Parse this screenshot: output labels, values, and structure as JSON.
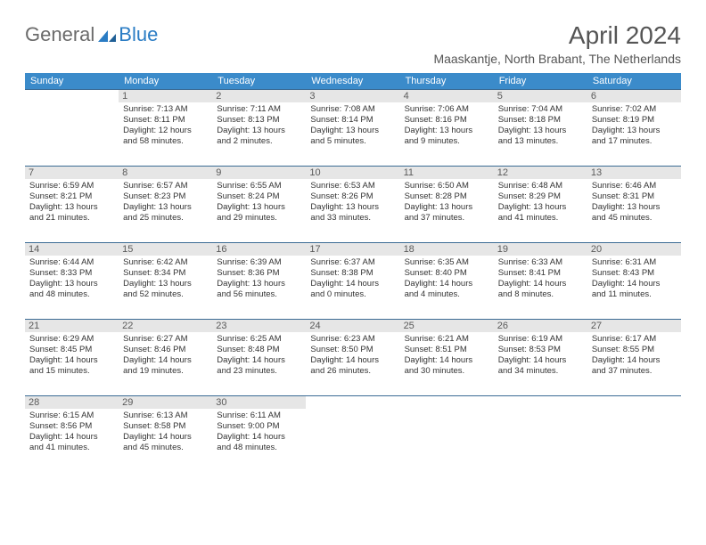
{
  "logo": {
    "general": "General",
    "blue": "Blue"
  },
  "title": "April 2024",
  "location": "Maaskantje, North Brabant, The Netherlands",
  "colors": {
    "header_bg": "#3b8bca",
    "header_text": "#ffffff",
    "row_border": "#3b6b94",
    "daynum_bg": "#e6e6e6",
    "logo_gray": "#6b6b6b",
    "logo_blue": "#2a7cc4"
  },
  "weekdays": [
    "Sunday",
    "Monday",
    "Tuesday",
    "Wednesday",
    "Thursday",
    "Friday",
    "Saturday"
  ],
  "weeks": [
    [
      null,
      {
        "n": "1",
        "sr": "Sunrise: 7:13 AM",
        "ss": "Sunset: 8:11 PM",
        "d1": "Daylight: 12 hours",
        "d2": "and 58 minutes."
      },
      {
        "n": "2",
        "sr": "Sunrise: 7:11 AM",
        "ss": "Sunset: 8:13 PM",
        "d1": "Daylight: 13 hours",
        "d2": "and 2 minutes."
      },
      {
        "n": "3",
        "sr": "Sunrise: 7:08 AM",
        "ss": "Sunset: 8:14 PM",
        "d1": "Daylight: 13 hours",
        "d2": "and 5 minutes."
      },
      {
        "n": "4",
        "sr": "Sunrise: 7:06 AM",
        "ss": "Sunset: 8:16 PM",
        "d1": "Daylight: 13 hours",
        "d2": "and 9 minutes."
      },
      {
        "n": "5",
        "sr": "Sunrise: 7:04 AM",
        "ss": "Sunset: 8:18 PM",
        "d1": "Daylight: 13 hours",
        "d2": "and 13 minutes."
      },
      {
        "n": "6",
        "sr": "Sunrise: 7:02 AM",
        "ss": "Sunset: 8:19 PM",
        "d1": "Daylight: 13 hours",
        "d2": "and 17 minutes."
      }
    ],
    [
      {
        "n": "7",
        "sr": "Sunrise: 6:59 AM",
        "ss": "Sunset: 8:21 PM",
        "d1": "Daylight: 13 hours",
        "d2": "and 21 minutes."
      },
      {
        "n": "8",
        "sr": "Sunrise: 6:57 AM",
        "ss": "Sunset: 8:23 PM",
        "d1": "Daylight: 13 hours",
        "d2": "and 25 minutes."
      },
      {
        "n": "9",
        "sr": "Sunrise: 6:55 AM",
        "ss": "Sunset: 8:24 PM",
        "d1": "Daylight: 13 hours",
        "d2": "and 29 minutes."
      },
      {
        "n": "10",
        "sr": "Sunrise: 6:53 AM",
        "ss": "Sunset: 8:26 PM",
        "d1": "Daylight: 13 hours",
        "d2": "and 33 minutes."
      },
      {
        "n": "11",
        "sr": "Sunrise: 6:50 AM",
        "ss": "Sunset: 8:28 PM",
        "d1": "Daylight: 13 hours",
        "d2": "and 37 minutes."
      },
      {
        "n": "12",
        "sr": "Sunrise: 6:48 AM",
        "ss": "Sunset: 8:29 PM",
        "d1": "Daylight: 13 hours",
        "d2": "and 41 minutes."
      },
      {
        "n": "13",
        "sr": "Sunrise: 6:46 AM",
        "ss": "Sunset: 8:31 PM",
        "d1": "Daylight: 13 hours",
        "d2": "and 45 minutes."
      }
    ],
    [
      {
        "n": "14",
        "sr": "Sunrise: 6:44 AM",
        "ss": "Sunset: 8:33 PM",
        "d1": "Daylight: 13 hours",
        "d2": "and 48 minutes."
      },
      {
        "n": "15",
        "sr": "Sunrise: 6:42 AM",
        "ss": "Sunset: 8:34 PM",
        "d1": "Daylight: 13 hours",
        "d2": "and 52 minutes."
      },
      {
        "n": "16",
        "sr": "Sunrise: 6:39 AM",
        "ss": "Sunset: 8:36 PM",
        "d1": "Daylight: 13 hours",
        "d2": "and 56 minutes."
      },
      {
        "n": "17",
        "sr": "Sunrise: 6:37 AM",
        "ss": "Sunset: 8:38 PM",
        "d1": "Daylight: 14 hours",
        "d2": "and 0 minutes."
      },
      {
        "n": "18",
        "sr": "Sunrise: 6:35 AM",
        "ss": "Sunset: 8:40 PM",
        "d1": "Daylight: 14 hours",
        "d2": "and 4 minutes."
      },
      {
        "n": "19",
        "sr": "Sunrise: 6:33 AM",
        "ss": "Sunset: 8:41 PM",
        "d1": "Daylight: 14 hours",
        "d2": "and 8 minutes."
      },
      {
        "n": "20",
        "sr": "Sunrise: 6:31 AM",
        "ss": "Sunset: 8:43 PM",
        "d1": "Daylight: 14 hours",
        "d2": "and 11 minutes."
      }
    ],
    [
      {
        "n": "21",
        "sr": "Sunrise: 6:29 AM",
        "ss": "Sunset: 8:45 PM",
        "d1": "Daylight: 14 hours",
        "d2": "and 15 minutes."
      },
      {
        "n": "22",
        "sr": "Sunrise: 6:27 AM",
        "ss": "Sunset: 8:46 PM",
        "d1": "Daylight: 14 hours",
        "d2": "and 19 minutes."
      },
      {
        "n": "23",
        "sr": "Sunrise: 6:25 AM",
        "ss": "Sunset: 8:48 PM",
        "d1": "Daylight: 14 hours",
        "d2": "and 23 minutes."
      },
      {
        "n": "24",
        "sr": "Sunrise: 6:23 AM",
        "ss": "Sunset: 8:50 PM",
        "d1": "Daylight: 14 hours",
        "d2": "and 26 minutes."
      },
      {
        "n": "25",
        "sr": "Sunrise: 6:21 AM",
        "ss": "Sunset: 8:51 PM",
        "d1": "Daylight: 14 hours",
        "d2": "and 30 minutes."
      },
      {
        "n": "26",
        "sr": "Sunrise: 6:19 AM",
        "ss": "Sunset: 8:53 PM",
        "d1": "Daylight: 14 hours",
        "d2": "and 34 minutes."
      },
      {
        "n": "27",
        "sr": "Sunrise: 6:17 AM",
        "ss": "Sunset: 8:55 PM",
        "d1": "Daylight: 14 hours",
        "d2": "and 37 minutes."
      }
    ],
    [
      {
        "n": "28",
        "sr": "Sunrise: 6:15 AM",
        "ss": "Sunset: 8:56 PM",
        "d1": "Daylight: 14 hours",
        "d2": "and 41 minutes."
      },
      {
        "n": "29",
        "sr": "Sunrise: 6:13 AM",
        "ss": "Sunset: 8:58 PM",
        "d1": "Daylight: 14 hours",
        "d2": "and 45 minutes."
      },
      {
        "n": "30",
        "sr": "Sunrise: 6:11 AM",
        "ss": "Sunset: 9:00 PM",
        "d1": "Daylight: 14 hours",
        "d2": "and 48 minutes."
      },
      null,
      null,
      null,
      null
    ]
  ]
}
